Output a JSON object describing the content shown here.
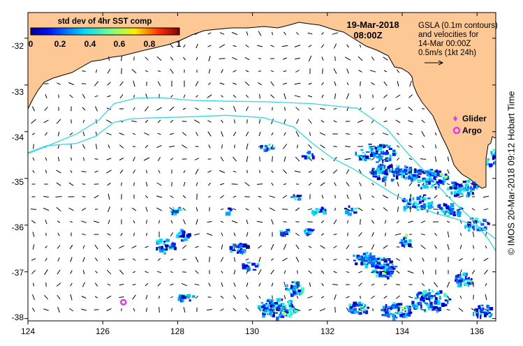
{
  "colorbar": {
    "title": "std dev of 4hr SST comp",
    "ticks": [
      "0",
      "0.2",
      "0.4",
      "0.6",
      "0.8",
      "1"
    ]
  },
  "timestamp": {
    "date": "19-Mar-2018",
    "time": "08:00Z"
  },
  "info_text": {
    "line1": "GSLA (0.1m contours)",
    "line2": "and velocities for",
    "line3": "14-Mar 00:00Z",
    "line4": "0.5m/s (1kt 24h)"
  },
  "legend": {
    "glider": "Glider",
    "argo": "Argo"
  },
  "axes": {
    "x_ticks": [
      "124",
      "126",
      "128",
      "130",
      "132",
      "134",
      "136"
    ],
    "y_ticks": [
      "-32",
      "-33",
      "-34",
      "-35",
      "-36",
      "-37",
      "-38"
    ]
  },
  "credit": "© IMOS 20-Mar-2018 09:12 Hobart Time",
  "colors": {
    "land": "#fdc893",
    "contour": "#33d8e8",
    "marker": "#e03ce8",
    "ocean": "#ffffff"
  },
  "chart_data": {
    "type": "map",
    "lon_range": [
      124,
      136.5
    ],
    "lat_range": [
      -38.05,
      -31.45
    ],
    "argo_floats": [
      {
        "lon": 126.55,
        "lat": -37.65
      }
    ],
    "coastline_note": "Southern Australia coast (Great Australian Bight to Eyre Peninsula) along top of map",
    "contours": [
      [
        [
          124.0,
          -34.47
        ],
        [
          124.6,
          -34.28
        ],
        [
          125.3,
          -34.05
        ],
        [
          125.9,
          -33.75
        ],
        [
          126.3,
          -33.4
        ],
        [
          126.9,
          -33.28
        ],
        [
          127.5,
          -33.27
        ],
        [
          128.4,
          -33.33
        ],
        [
          129.4,
          -33.35
        ],
        [
          130.4,
          -33.36
        ],
        [
          131.6,
          -33.4
        ],
        [
          132.8,
          -33.5
        ],
        [
          133.6,
          -33.95
        ],
        [
          134.1,
          -34.42
        ],
        [
          134.6,
          -34.85
        ],
        [
          135.3,
          -35.45
        ],
        [
          135.9,
          -35.9
        ],
        [
          136.3,
          -36.3
        ],
        [
          136.5,
          -36.55
        ]
      ],
      [
        [
          124.0,
          -34.45
        ],
        [
          124.5,
          -34.3
        ],
        [
          125.3,
          -34.25
        ],
        [
          125.8,
          -34.1
        ],
        [
          126.3,
          -33.8
        ],
        [
          126.8,
          -33.72
        ],
        [
          127.5,
          -33.7
        ],
        [
          128.4,
          -33.68
        ],
        [
          129.3,
          -33.65
        ],
        [
          130.3,
          -33.7
        ],
        [
          131.1,
          -33.9
        ],
        [
          131.6,
          -34.25
        ],
        [
          132.1,
          -34.55
        ],
        [
          132.7,
          -34.8
        ],
        [
          133.3,
          -35.1
        ],
        [
          133.8,
          -35.35
        ],
        [
          134.4,
          -35.6
        ],
        [
          134.9,
          -35.75
        ],
        [
          135.5,
          -35.88
        ],
        [
          136.1,
          -36.05
        ],
        [
          136.5,
          -36.3
        ]
      ]
    ]
  }
}
